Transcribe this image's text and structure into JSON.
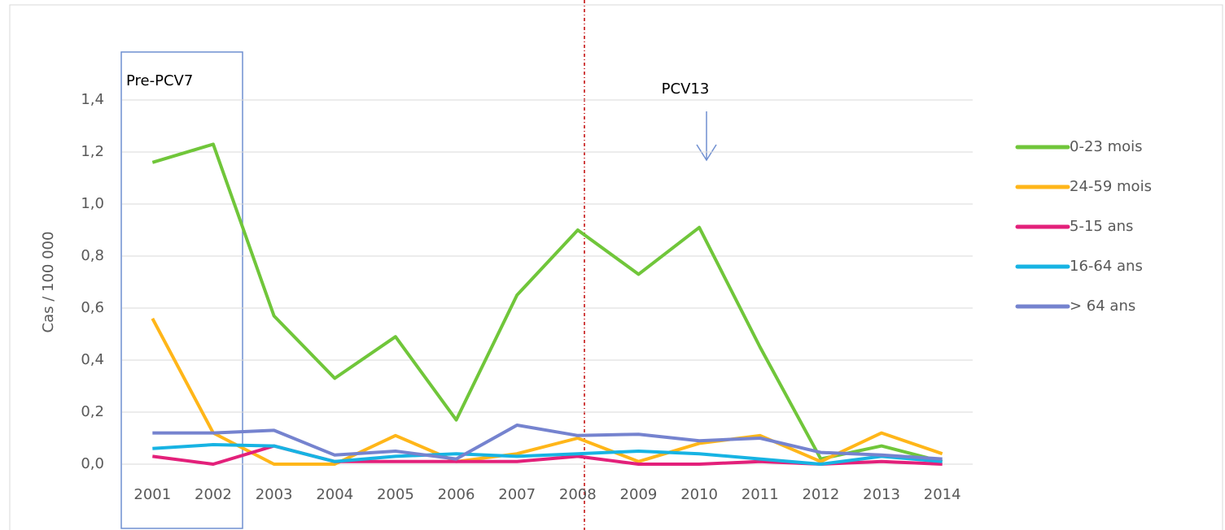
{
  "chart_data": {
    "type": "line",
    "ylabel": "Cas / 100 000",
    "categories": [
      "2001",
      "2002",
      "2003",
      "2004",
      "2005",
      "2006",
      "2007",
      "2008",
      "2009",
      "2010",
      "2011",
      "2012",
      "2013",
      "2014"
    ],
    "series": [
      {
        "name": "0-23 mois",
        "color": "#70c63a",
        "values": [
          1.16,
          1.23,
          0.57,
          0.33,
          0.49,
          0.17,
          0.65,
          0.9,
          0.73,
          0.91,
          0.45,
          0.02,
          0.07,
          0.01
        ]
      },
      {
        "name": "24-59 mois",
        "color": "#ffb619",
        "values": [
          0.56,
          0.12,
          0.0,
          0.0,
          0.11,
          0.01,
          0.04,
          0.1,
          0.01,
          0.08,
          0.11,
          0.01,
          0.12,
          0.04
        ]
      },
      {
        "name": "5-15 ans",
        "color": "#e3207a",
        "values": [
          0.03,
          0.0,
          0.07,
          0.01,
          0.01,
          0.01,
          0.01,
          0.03,
          0.0,
          0.0,
          0.01,
          0.0,
          0.01,
          0.0
        ]
      },
      {
        "name": "16-64 ans",
        "color": "#17b3e3",
        "values": [
          0.06,
          0.075,
          0.07,
          0.01,
          0.03,
          0.04,
          0.03,
          0.04,
          0.05,
          0.04,
          0.02,
          0.0,
          0.03,
          0.01
        ]
      },
      {
        "name": "> 64 ans",
        "color": "#7583cf",
        "values": [
          0.12,
          0.12,
          0.13,
          0.035,
          0.05,
          0.02,
          0.15,
          0.11,
          0.115,
          0.09,
          0.1,
          0.045,
          0.035,
          0.02
        ]
      }
    ],
    "ylim": [
      0,
      1.4
    ],
    "yticks": [
      {
        "value": 0,
        "label": "0,0"
      },
      {
        "value": 0.2,
        "label": "0,2"
      },
      {
        "value": 0.4,
        "label": "0,4"
      },
      {
        "value": 0.6,
        "label": "0,6"
      },
      {
        "value": 0.8,
        "label": "0,8"
      },
      {
        "value": 1.0,
        "label": "1,0"
      },
      {
        "value": 1.2,
        "label": "1,2"
      },
      {
        "value": 1.4,
        "label": "1,4"
      }
    ],
    "grid": true,
    "legend": "right",
    "annotations": [
      "Pre-PCV7",
      "PCV13"
    ]
  }
}
